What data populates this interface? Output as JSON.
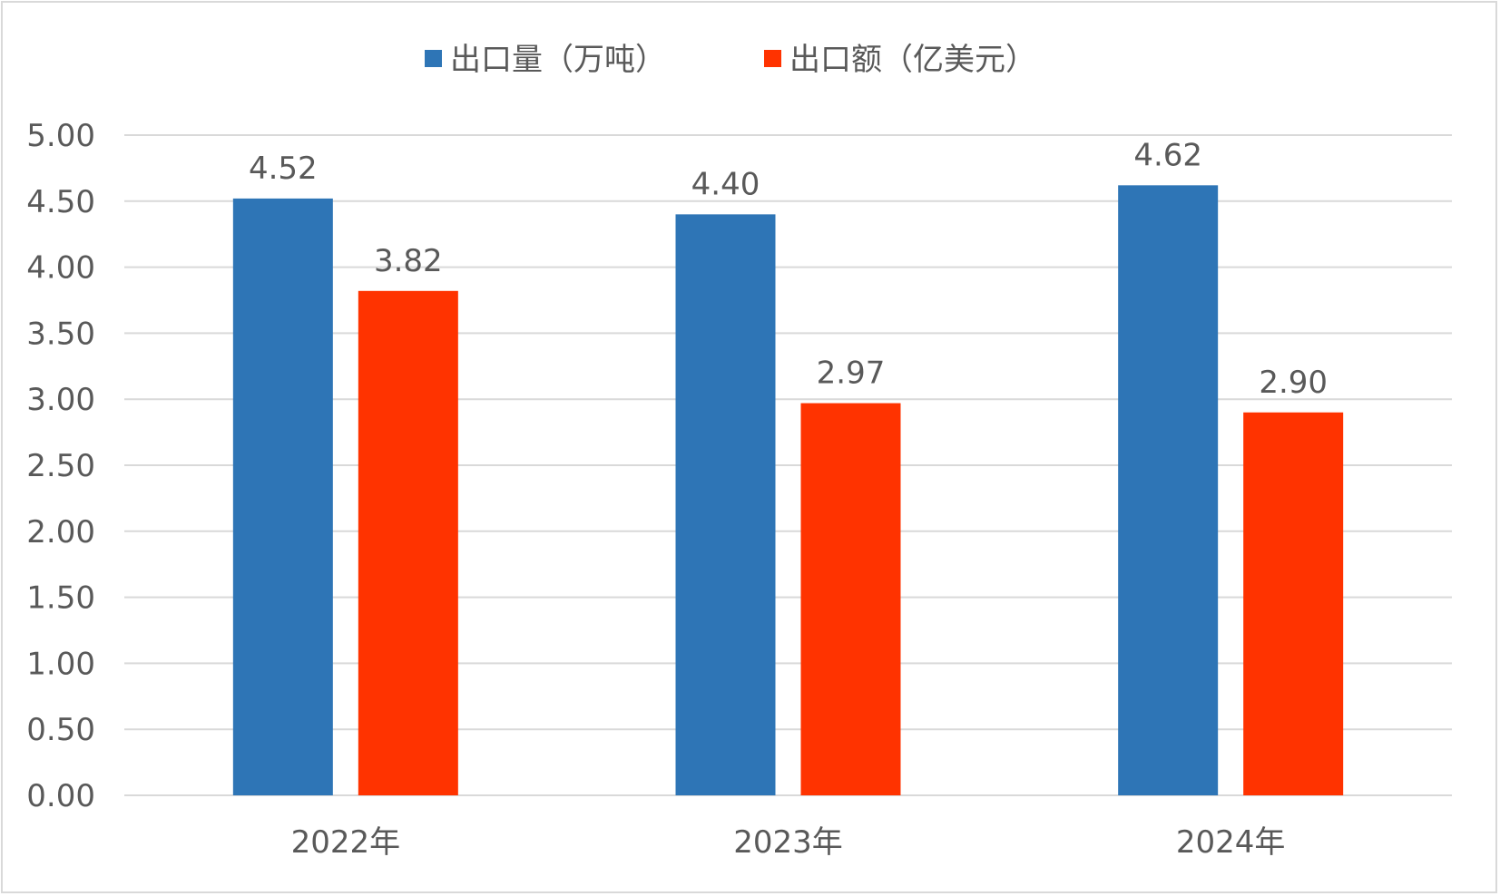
{
  "chart_data": {
    "type": "bar",
    "title": "",
    "categories": [
      "2022年",
      "2023年",
      "2024年"
    ],
    "series": [
      {
        "name": "出口量（万吨）",
        "color": "#2e75b6",
        "values": [
          4.52,
          4.4,
          4.62
        ]
      },
      {
        "name": "出口额（亿美元）",
        "color": "#ff3300",
        "values": [
          3.82,
          2.97,
          2.9
        ]
      }
    ],
    "data_labels": [
      [
        "4.52",
        "4.40",
        "4.62"
      ],
      [
        "3.82",
        "2.97",
        "2.90"
      ]
    ],
    "ylim": [
      0,
      5
    ],
    "yticks": [
      "0.00",
      "0.50",
      "1.00",
      "1.50",
      "2.00",
      "2.50",
      "3.00",
      "3.50",
      "4.00",
      "4.50",
      "5.00"
    ],
    "grid": true,
    "legend": "top-center",
    "xlabel": "",
    "ylabel": ""
  }
}
